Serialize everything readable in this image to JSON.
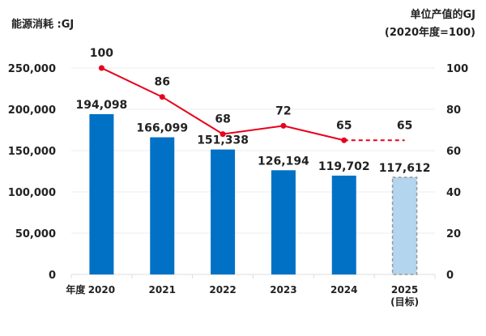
{
  "chart_data": {
    "type": "bar+line",
    "left_axis_title": "能源消耗 :GJ",
    "right_axis_title_line1": "单位产值的GJ",
    "right_axis_title_line2": "(2020年度=100)",
    "x_prefix": "年度",
    "categories": [
      "2020",
      "2021",
      "2022",
      "2023",
      "2024",
      "2025"
    ],
    "category_sublabels": [
      "",
      "",
      "",
      "",
      "",
      "(目标)"
    ],
    "left_ylim": [
      0,
      250000
    ],
    "left_ticks": [
      "0",
      "50,000",
      "100,000",
      "150,000",
      "200,000",
      "250,000"
    ],
    "right_ylim": [
      0,
      100
    ],
    "right_ticks": [
      "0",
      "20",
      "40",
      "60",
      "80",
      "100"
    ],
    "grid": true,
    "bars": {
      "values": [
        194098,
        166099,
        151338,
        126194,
        119702,
        117612
      ],
      "labels": [
        "194,098",
        "166,099",
        "151,338",
        "126,194",
        "119,702",
        "117,612"
      ],
      "color": "#0071c5",
      "target_color": "#b3d5ee",
      "target_index": 5
    },
    "line": {
      "values": [
        100,
        86,
        68,
        72,
        65,
        65
      ],
      "labels": [
        "100",
        "86",
        "68",
        "72",
        "65",
        "65"
      ],
      "color": "#e8001c",
      "dashed_from_index": 4
    }
  }
}
